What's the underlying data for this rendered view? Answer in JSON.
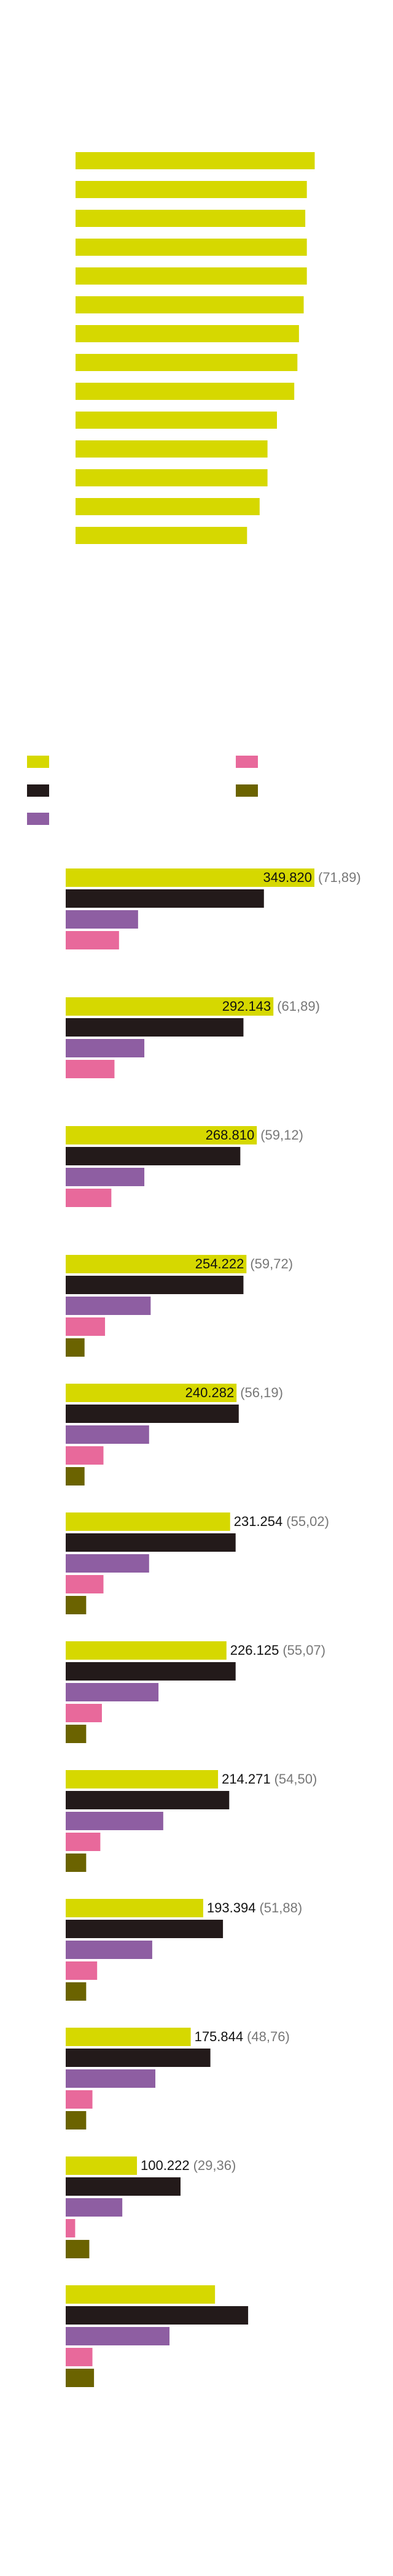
{
  "chart_data": [
    {
      "type": "bar",
      "orientation": "horizontal",
      "color": "#d6d800",
      "categories": [
        null,
        null,
        null,
        null,
        null,
        null,
        null,
        null,
        null,
        null,
        null,
        null,
        null,
        null
      ],
      "values": [
        152,
        147,
        146,
        147,
        147,
        145,
        142,
        141,
        139,
        128,
        122,
        122,
        117,
        109
      ],
      "xlim": [
        0,
        160
      ]
    },
    {
      "type": "grouped-bar",
      "orientation": "horizontal",
      "categories": [
        null,
        null,
        null,
        null,
        null,
        null,
        null,
        null,
        null,
        null,
        null,
        null
      ],
      "xlim": [
        0,
        450000
      ],
      "series": [
        {
          "color": "#d6d800",
          "values": [
            349820,
            292143,
            268810,
            254222,
            240282,
            231254,
            226125,
            214271,
            193394,
            175844,
            100222,
            210000
          ],
          "value_labels": [
            "349.820",
            "292.143",
            "268.810",
            "254.222",
            "240.282",
            "231.254",
            "226.125",
            "214.271",
            "193.394",
            "175.844",
            "100.222",
            null
          ],
          "share_labels": [
            "(71,89)",
            "(61,89)",
            "(59,12)",
            "(59,72)",
            "(56,19)",
            "(55,02)",
            "(55,07)",
            "(54,50)",
            "(51,88)",
            "(48,76)",
            "(29,36)",
            null
          ]
        },
        {
          "color": "#231a1a",
          "values": [
            278800,
            250000,
            245600,
            250000,
            243400,
            239000,
            239000,
            230000,
            221200,
            203500,
            161500,
            256600
          ]
        },
        {
          "color": "#8e5ea2",
          "values": [
            101800,
            110600,
            110600,
            119500,
            117300,
            117300,
            130500,
            137200,
            121700,
            126100,
            79600,
            146000
          ]
        },
        {
          "color": "#e8699b",
          "values": [
            75000,
            68600,
            64200,
            55300,
            53100,
            53100,
            50900,
            48700,
            44200,
            37600,
            13300,
            37600
          ]
        },
        {
          "color": "#6b6300",
          "values": [
            null,
            null,
            null,
            26500,
            26500,
            28800,
            28800,
            28800,
            28800,
            28800,
            33200,
            39800
          ]
        }
      ]
    }
  ]
}
